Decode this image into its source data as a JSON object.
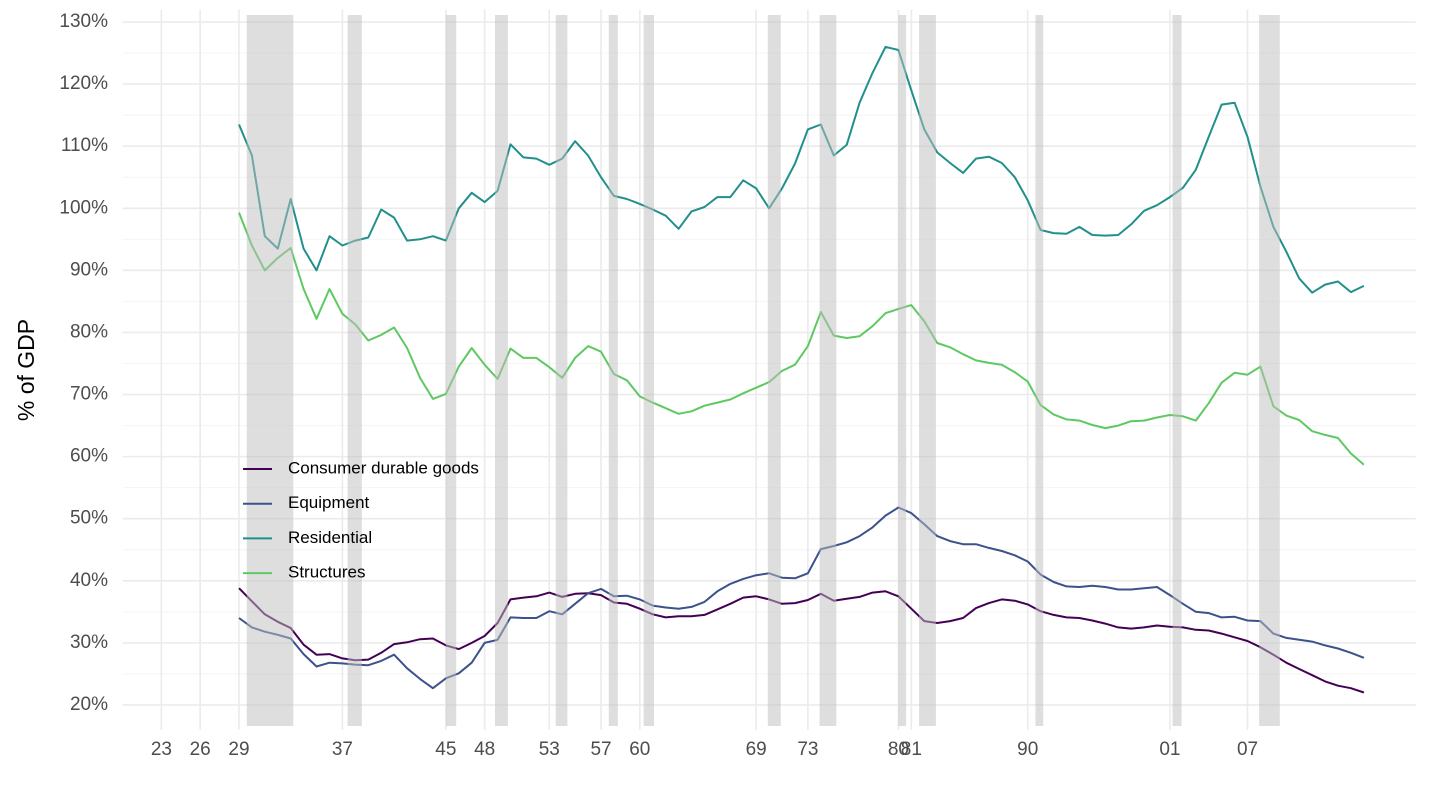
{
  "chart_data": {
    "type": "line",
    "y_label": "% of GDP",
    "xlim": [
      1920,
      2020
    ],
    "ylim": [
      16,
      132
    ],
    "grid": true,
    "legend": "inside-bottom-left",
    "xticks": [
      {
        "value": 1923,
        "label": "23"
      },
      {
        "value": 1926,
        "label": "26"
      },
      {
        "value": 1929,
        "label": "29"
      },
      {
        "value": 1937,
        "label": "37"
      },
      {
        "value": 1945,
        "label": "45"
      },
      {
        "value": 1948,
        "label": "48"
      },
      {
        "value": 1953,
        "label": "53"
      },
      {
        "value": 1957,
        "label": "57"
      },
      {
        "value": 1960,
        "label": "60"
      },
      {
        "value": 1969,
        "label": "69"
      },
      {
        "value": 1973,
        "label": "73"
      },
      {
        "value": 1980,
        "label": "80"
      },
      {
        "value": 1981,
        "label": "81"
      },
      {
        "value": 1990,
        "label": "90"
      },
      {
        "value": 2001,
        "label": "01"
      },
      {
        "value": 2007,
        "label": "07"
      }
    ],
    "yticks": [
      {
        "value": 20,
        "label": "20%"
      },
      {
        "value": 30,
        "label": "30%"
      },
      {
        "value": 40,
        "label": "40%"
      },
      {
        "value": 50,
        "label": "50%"
      },
      {
        "value": 60,
        "label": "60%"
      },
      {
        "value": 70,
        "label": "70%"
      },
      {
        "value": 80,
        "label": "80%"
      },
      {
        "value": 90,
        "label": "90%"
      },
      {
        "value": 100,
        "label": "100%"
      },
      {
        "value": 110,
        "label": "110%"
      },
      {
        "value": 120,
        "label": "120%"
      },
      {
        "value": 130,
        "label": "130%"
      }
    ],
    "recessions": [
      [
        1929.6,
        1933.2
      ],
      [
        1937.4,
        1938.5
      ],
      [
        1945.0,
        1945.8
      ],
      [
        1948.8,
        1949.8
      ],
      [
        1953.5,
        1954.4
      ],
      [
        1957.6,
        1958.3
      ],
      [
        1960.3,
        1961.1
      ],
      [
        1969.9,
        1970.9
      ],
      [
        1973.9,
        1975.2
      ],
      [
        1980.0,
        1980.6
      ],
      [
        1981.6,
        1982.9
      ],
      [
        1990.6,
        1991.2
      ],
      [
        2001.2,
        2001.9
      ],
      [
        2007.9,
        2009.5
      ]
    ],
    "x": [
      1929,
      1930,
      1931,
      1932,
      1933,
      1934,
      1935,
      1936,
      1937,
      1938,
      1939,
      1940,
      1941,
      1942,
      1943,
      1944,
      1945,
      1946,
      1947,
      1948,
      1949,
      1950,
      1951,
      1952,
      1953,
      1954,
      1955,
      1956,
      1957,
      1958,
      1959,
      1960,
      1961,
      1962,
      1963,
      1964,
      1965,
      1966,
      1967,
      1968,
      1969,
      1970,
      1971,
      1972,
      1973,
      1974,
      1975,
      1976,
      1977,
      1978,
      1979,
      1980,
      1981,
      1982,
      1983,
      1984,
      1985,
      1986,
      1987,
      1988,
      1989,
      1990,
      1991,
      1992,
      1993,
      1994,
      1995,
      1996,
      1997,
      1998,
      1999,
      2000,
      2001,
      2002,
      2003,
      2004,
      2005,
      2006,
      2007,
      2008,
      2009,
      2010,
      2011,
      2012,
      2013,
      2014,
      2015,
      2016
    ],
    "series": [
      {
        "name": "Consumer durable goods",
        "color": "#440154",
        "values": [
          38.8,
          36.7,
          34.6,
          33.4,
          32.4,
          29.7,
          28.1,
          28.2,
          27.5,
          27.2,
          27.3,
          28.4,
          29.8,
          30.1,
          30.6,
          30.7,
          29.6,
          29.0,
          30.0,
          31.1,
          33.2,
          37.0,
          37.3,
          37.5,
          38.1,
          37.4,
          37.9,
          38.0,
          37.7,
          36.5,
          36.3,
          35.5,
          34.6,
          34.1,
          34.3,
          34.3,
          34.5,
          35.4,
          36.3,
          37.3,
          37.5,
          37.0,
          36.3,
          36.4,
          36.9,
          37.9,
          36.8,
          37.1,
          37.4,
          38.1,
          38.3,
          37.5,
          35.5,
          33.5,
          33.2,
          33.5,
          34.0,
          35.6,
          36.4,
          37.0,
          36.8,
          36.2,
          35.1,
          34.5,
          34.1,
          34.0,
          33.6,
          33.1,
          32.5,
          32.3,
          32.5,
          32.8,
          32.6,
          32.5,
          32.1,
          32.0,
          31.5,
          30.9,
          30.3,
          29.3,
          28.1,
          26.8,
          25.8,
          24.8,
          23.8,
          23.1,
          22.7,
          22.0
        ]
      },
      {
        "name": "Equipment",
        "color": "#3b528b",
        "values": [
          34.0,
          32.5,
          31.8,
          31.3,
          30.7,
          28.2,
          26.2,
          26.8,
          26.7,
          26.5,
          26.4,
          27.1,
          28.1,
          25.9,
          24.2,
          22.7,
          24.3,
          25.1,
          26.8,
          30.0,
          30.5,
          34.1,
          34.0,
          34.0,
          35.1,
          34.6,
          36.3,
          38.0,
          38.7,
          37.5,
          37.6,
          37.0,
          36.0,
          35.7,
          35.5,
          35.8,
          36.6,
          38.3,
          39.5,
          40.3,
          40.9,
          41.2,
          40.5,
          40.4,
          41.2,
          45.1,
          45.6,
          46.2,
          47.2,
          48.6,
          50.5,
          51.8,
          50.9,
          49.1,
          47.2,
          46.4,
          45.9,
          45.9,
          45.3,
          44.8,
          44.1,
          43.1,
          41.0,
          39.8,
          39.1,
          39.0,
          39.2,
          39.0,
          38.6,
          38.6,
          38.8,
          39.0,
          37.7,
          36.3,
          35.0,
          34.8,
          34.1,
          34.2,
          33.6,
          33.5,
          31.5,
          30.8,
          30.5,
          30.2,
          29.6,
          29.1,
          28.4,
          27.6
        ]
      },
      {
        "name": "Residential",
        "color": "#21908c",
        "values": [
          113.5,
          108.5,
          95.5,
          93.5,
          101.5,
          93.5,
          90.0,
          95.5,
          94.0,
          94.8,
          95.3,
          99.8,
          98.5,
          94.8,
          95.0,
          95.5,
          94.8,
          100.0,
          102.5,
          101.0,
          102.8,
          110.3,
          108.2,
          108.0,
          107.0,
          108.0,
          110.8,
          108.5,
          105.0,
          102.0,
          101.5,
          100.7,
          99.8,
          98.8,
          96.7,
          99.5,
          100.2,
          101.8,
          101.8,
          104.5,
          103.2,
          100.0,
          103.2,
          107.2,
          112.7,
          113.5,
          108.5,
          110.2,
          117.0,
          121.8,
          126.0,
          125.5,
          119.0,
          112.7,
          109.0,
          107.3,
          105.7,
          108.0,
          108.3,
          107.3,
          105.0,
          101.3,
          96.5,
          96.0,
          95.9,
          97.0,
          95.7,
          95.6,
          95.7,
          97.4,
          99.6,
          100.5,
          101.8,
          103.3,
          106.2,
          111.5,
          116.7,
          117.0,
          111.5,
          103.5,
          97.0,
          93.0,
          88.7,
          86.4,
          87.7,
          88.2,
          86.5,
          87.5
        ]
      },
      {
        "name": "Structures",
        "color": "#5ec962",
        "values": [
          99.3,
          94.0,
          90.0,
          92.0,
          93.6,
          87.0,
          82.2,
          87.0,
          83.0,
          81.3,
          78.7,
          79.6,
          80.8,
          77.5,
          72.7,
          69.3,
          70.1,
          74.5,
          77.5,
          74.8,
          72.5,
          77.4,
          75.9,
          75.9,
          74.4,
          72.7,
          75.9,
          77.8,
          76.9,
          73.3,
          72.3,
          69.7,
          68.7,
          67.8,
          66.9,
          67.3,
          68.2,
          68.7,
          69.2,
          70.2,
          71.1,
          72.0,
          73.8,
          74.8,
          77.8,
          83.3,
          79.5,
          79.1,
          79.4,
          81.0,
          83.1,
          83.8,
          84.4,
          81.8,
          78.3,
          77.6,
          76.5,
          75.5,
          75.1,
          74.8,
          73.6,
          72.1,
          68.3,
          66.8,
          66.0,
          65.8,
          65.1,
          64.6,
          65.0,
          65.7,
          65.8,
          66.3,
          66.7,
          66.5,
          65.8,
          68.6,
          71.9,
          73.5,
          73.2,
          74.5,
          68.1,
          66.6,
          65.9,
          64.1,
          63.5,
          63.0,
          60.5,
          58.7
        ]
      }
    ]
  }
}
